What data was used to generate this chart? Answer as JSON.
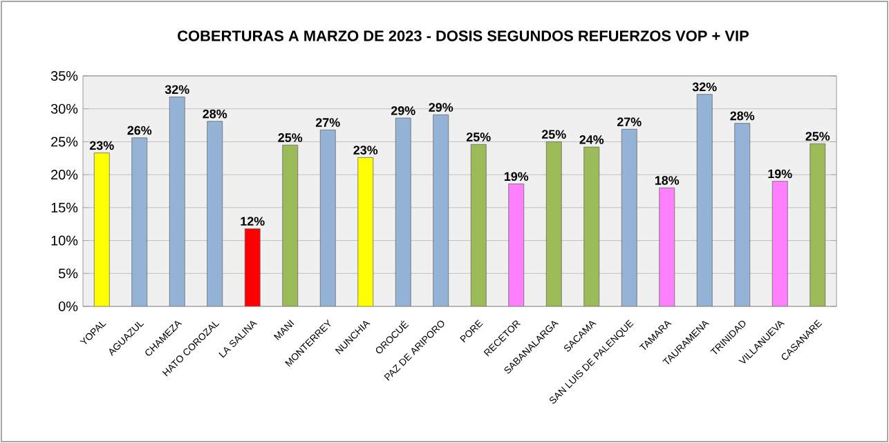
{
  "chart_data": {
    "type": "bar",
    "title": "COBERTURAS A MARZO DE 2023  - DOSIS SEGUNDOS REFUERZOS VOP + VIP",
    "categories": [
      "YOPAL",
      "AGUAZUL",
      "CHAMEZA",
      "HATO COROZAL",
      "LA SALINA",
      "MANI",
      "MONTERREY",
      "NUNCHIA",
      "OROCUÉ",
      "PAZ DE ARIPORO",
      "PORE",
      "RECETOR",
      "SABANALARGA",
      "SACAMA",
      "SAN LUIS DE PALENQUE",
      "TAMARA",
      "TAURAMENA",
      "TRINIDAD",
      "VILLANUEVA",
      "CASANARE"
    ],
    "values": [
      23.3,
      25.6,
      31.8,
      28.1,
      11.8,
      24.5,
      26.8,
      22.6,
      28.6,
      29.1,
      24.6,
      18.6,
      25.0,
      24.2,
      26.9,
      18.0,
      32.2,
      27.8,
      19.0,
      24.7
    ],
    "value_labels": [
      "23%",
      "26%",
      "32%",
      "28%",
      "12%",
      "25%",
      "27%",
      "23%",
      "29%",
      "29%",
      "25%",
      "19%",
      "25%",
      "24%",
      "27%",
      "18%",
      "32%",
      "28%",
      "19%",
      "25%"
    ],
    "colors": [
      "#ffff00",
      "#95b3d7",
      "#95b3d7",
      "#95b3d7",
      "#ff0000",
      "#9bbb59",
      "#95b3d7",
      "#ffff00",
      "#95b3d7",
      "#95b3d7",
      "#9bbb59",
      "#ff80ff",
      "#9bbb59",
      "#9bbb59",
      "#95b3d7",
      "#ff80ff",
      "#95b3d7",
      "#95b3d7",
      "#ff80ff",
      "#9bbb59"
    ],
    "ylim": [
      0,
      35
    ],
    "yticks": [
      {
        "value": 0,
        "label": "0%"
      },
      {
        "value": 5,
        "label": "5%"
      },
      {
        "value": 10,
        "label": "10%"
      },
      {
        "value": 15,
        "label": "15%"
      },
      {
        "value": 20,
        "label": "20%"
      },
      {
        "value": 25,
        "label": "25%"
      },
      {
        "value": 30,
        "label": "30%"
      },
      {
        "value": 35,
        "label": "35%"
      }
    ],
    "grid": "y"
  }
}
